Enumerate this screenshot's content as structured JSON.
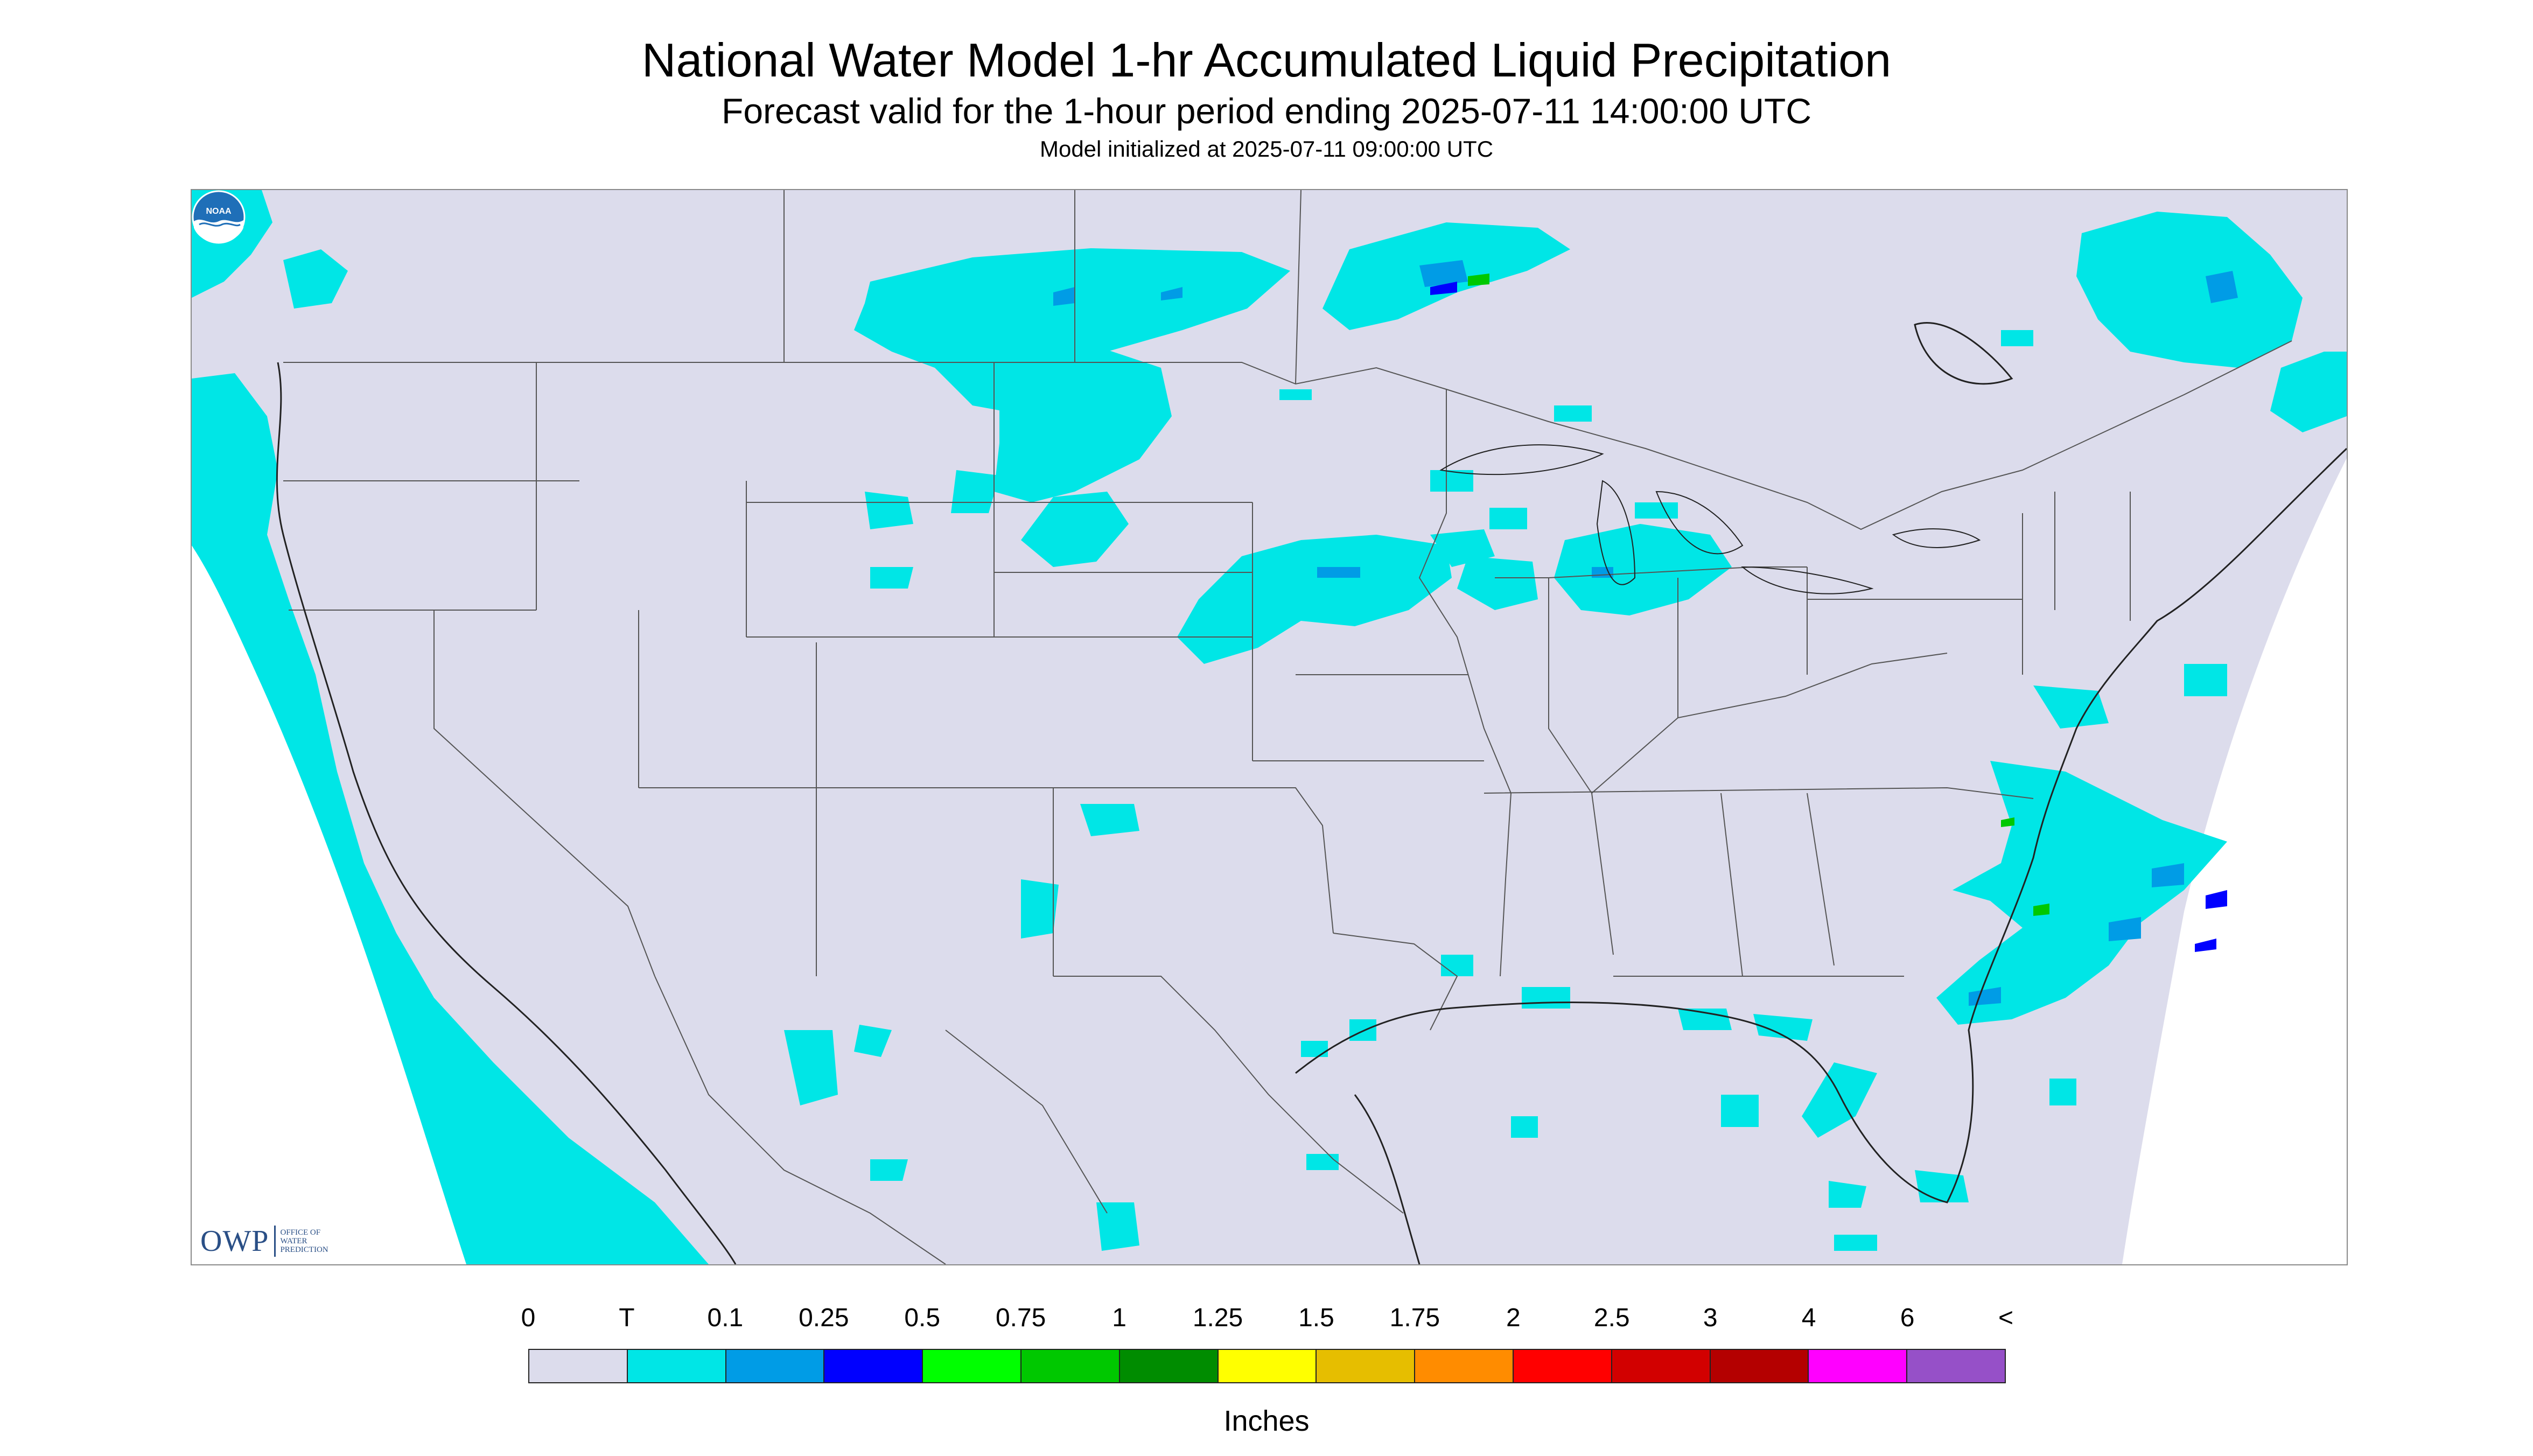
{
  "header": {
    "title": "National Water Model 1-hr Accumulated Liquid Precipitation",
    "subtitle": "Forecast valid for the 1-hour period ending 2025-07-11 14:00:00 UTC",
    "initialized": "Model initialized at 2025-07-11 09:00:00 UTC"
  },
  "map": {
    "projection": "conic",
    "background_color": "#dcdcec",
    "outside_domain_color": "#ffffff",
    "precip_color_trace": "#00e6e6",
    "precip_color_01": "#009ce6",
    "precip_color_025": "#0000ff",
    "precip_color_05": "#00ff00",
    "precip_color_075": "#00c800",
    "precip_color_1": "#008c00",
    "boundary_color": "#555555"
  },
  "logos": {
    "owp_mark": "OWP",
    "owp_text": "OFFICE OF\nWATER\nPREDICTION",
    "noaa_text": "NOAA",
    "noaa_icon": "noaa-emblem-icon"
  },
  "legend": {
    "unit": "Inches",
    "labels": [
      "0",
      "T",
      "0.1",
      "0.25",
      "0.5",
      "0.75",
      "1",
      "1.25",
      "1.5",
      "1.75",
      "2",
      "2.5",
      "3",
      "4",
      "6",
      "<"
    ],
    "colors": [
      "#dcdcec",
      "#00e6e6",
      "#009ce6",
      "#0000ff",
      "#00ff00",
      "#00c800",
      "#008c00",
      "#ffff00",
      "#e6be00",
      "#ff8c00",
      "#ff0000",
      "#d20000",
      "#b40000",
      "#ff00ff",
      "#9650c8"
    ]
  }
}
